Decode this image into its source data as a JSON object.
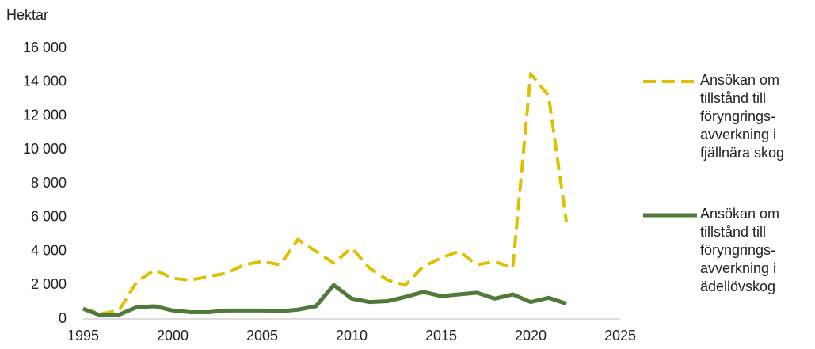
{
  "chart_data": {
    "type": "line",
    "y_label": "Hektar",
    "x": [
      1995,
      1996,
      1997,
      1998,
      1999,
      2000,
      2001,
      2002,
      2003,
      2004,
      2005,
      2006,
      2007,
      2008,
      2009,
      2010,
      2011,
      2012,
      2013,
      2014,
      2015,
      2016,
      2017,
      2018,
      2019,
      2020,
      2021,
      2022
    ],
    "series": [
      {
        "name": "Ansökan om tillstånd till föryngrings-avverkning i fjällnära skog",
        "color": "#dfc000",
        "dashed": true,
        "values": [
          600,
          300,
          500,
          2200,
          2900,
          2400,
          2300,
          2500,
          2700,
          3200,
          3400,
          3200,
          4700,
          4000,
          3300,
          4200,
          3000,
          2300,
          2000,
          3100,
          3600,
          4000,
          3200,
          3400,
          3000,
          14500,
          13200,
          5700
        ]
      },
      {
        "name": "Ansökan om tillstånd till föryngrings-avverkning i ädellövskog",
        "color": "#4e7a3a",
        "dashed": false,
        "values": [
          600,
          200,
          250,
          700,
          750,
          500,
          400,
          400,
          500,
          500,
          500,
          450,
          550,
          750,
          2000,
          1200,
          1000,
          1050,
          1300,
          1600,
          1350,
          1450,
          1550,
          1200,
          1450,
          1000,
          1250,
          900
        ]
      }
    ],
    "xlim": [
      1995,
      2025
    ],
    "xticks": [
      1995,
      2000,
      2005,
      2010,
      2015,
      2020,
      2025
    ],
    "ylim": [
      0,
      16000
    ],
    "yticks": [
      0,
      {
        "value": 2000,
        "label": "2 000"
      },
      {
        "value": 4000,
        "label": "4 000"
      },
      {
        "value": 6000,
        "label": "6 000"
      },
      {
        "value": 8000,
        "label": "8 000"
      },
      {
        "value": 10000,
        "label": "10 000"
      },
      {
        "value": 12000,
        "label": "12 000"
      },
      {
        "value": 14000,
        "label": "14 000"
      },
      {
        "value": 16000,
        "label": "16 000"
      }
    ],
    "legend": "right"
  }
}
